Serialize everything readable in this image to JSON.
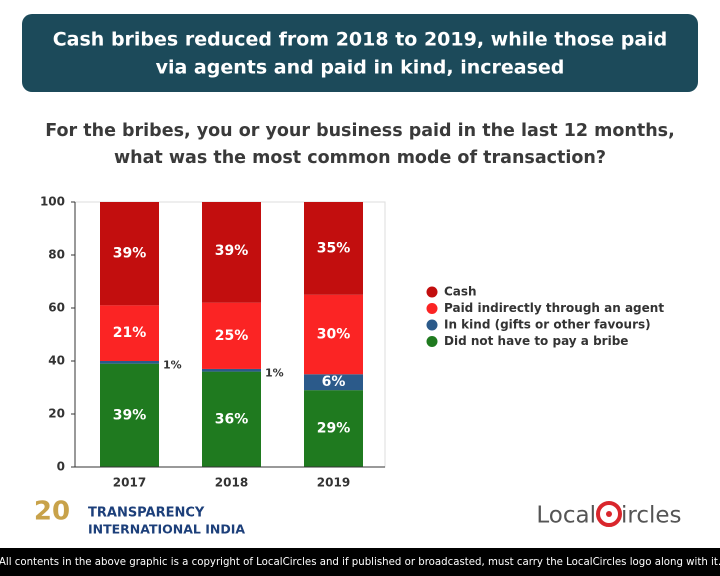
{
  "banner": [
    "Cash bribes reduced from 2018 to 2019, while those paid",
    "via agents and paid in kind, increased"
  ],
  "chart_data": {
    "type": "stacked_bar",
    "title": [
      "For the bribes, you or your business paid in the last 12 months,",
      "what was the most common mode of transaction?"
    ],
    "categories": [
      "2017",
      "2018",
      "2019"
    ],
    "series": [
      {
        "name": "Did not have to pay a bribe",
        "color": "#1f7a1f",
        "values": [
          39,
          36,
          29
        ],
        "value_labels": [
          "39%",
          "36%",
          "29%"
        ]
      },
      {
        "name": "In kind (gifts or other favours)",
        "color": "#2b5a8a",
        "values": [
          1,
          1,
          6
        ],
        "value_labels": [
          "1%",
          "1%",
          "6%"
        ]
      },
      {
        "name": "Paid indirectly through an agent",
        "color": "#fb2424",
        "values": [
          21,
          25,
          30
        ],
        "value_labels": [
          "21%",
          "25%",
          "30%"
        ]
      },
      {
        "name": "Cash",
        "color": "#c20e0e",
        "values": [
          39,
          39,
          35
        ],
        "value_labels": [
          "39%",
          "39%",
          "35%"
        ]
      }
    ],
    "ylim": [
      0,
      100
    ],
    "yticks": [
      0,
      20,
      40,
      60,
      80,
      100
    ],
    "legend": "right"
  },
  "logos": {
    "tii_years": "20",
    "tii_line1": "TRANSPARENCY",
    "tii_line2": "INTERNATIONAL INDIA",
    "lc_left": "Local",
    "lc_right": "ircles"
  },
  "footer": "All contents in the above graphic is a copyright of LocalCircles and if published or broadcasted, must carry the LocalCircles logo along with it."
}
